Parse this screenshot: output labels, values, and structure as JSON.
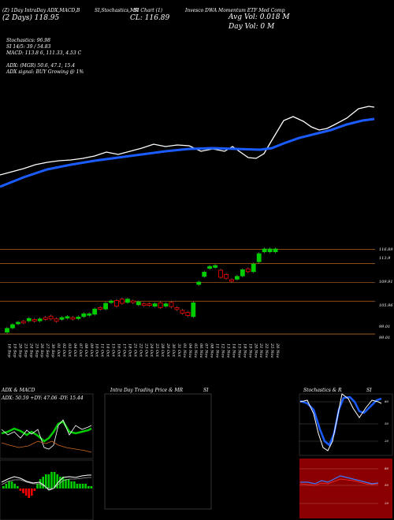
{
  "header": {
    "ticker_line": "(Z) 1Day IntraDay ADX,MACD,B",
    "date_range_line": "(2 Days)   118.95",
    "stochastic_label": "SI,Stochastics,MR",
    "si_chart_label": "SI Chart (1)",
    "close_label": "CL: 116.89",
    "company_line": "Invesco DWA Momentum ETF Med Comp",
    "avg_vol": "Avg Vol: 0.018  M",
    "day_vol": "Day Vol: 0  M"
  },
  "stats": {
    "stochastics": "Stochastics: 96.98",
    "si": "SI 14/5: 39 / 54.83",
    "macd": "MACD: 113.8         6,  111.33,  4.53 C",
    "adx": "ADX:                   (MGR) 50.6,  47.1,  15.4",
    "adx_signal": "ADX  signal:                   BUY Growing @ 1%"
  },
  "price_axis": [
    "116.89",
    "113.9",
    "109.91",
    "105.96",
    "99.01",
    "99.01"
  ],
  "date_labels": [
    "16 Sep",
    "19 Sep",
    "20 Sep",
    "23 Sep",
    "24 Sep",
    "25 Sep",
    "26 Sep",
    "27 Sep",
    "30 Sep",
    "01 Oct",
    "02 Oct",
    "03 Oct",
    "04 Oct",
    "07 Oct",
    "08 Oct",
    "09 Oct",
    "10 Oct",
    "11 Oct",
    "14 Oct",
    "15 Oct",
    "16 Oct",
    "17 Oct",
    "18 Oct",
    "21 Oct",
    "22 Oct",
    "23 Oct",
    "24 Oct",
    "25 Oct",
    "28 Oct",
    "29 Oct",
    "30 Oct",
    "31 Oct",
    "01 Nov",
    "04 Nov",
    "05 Nov",
    "06 Nov",
    "07 Nov",
    "08 Nov",
    "11 Nov",
    "12 Nov",
    "13 Nov",
    "14 Nov",
    "15 Nov",
    "18 Nov",
    "19 Nov",
    "20 Nov",
    "21 Nov",
    "22 Nov",
    "25 Nov",
    "26 Nov"
  ],
  "panels": {
    "adx_title": "ADX  & MACD",
    "adx_values": "ADX: 50.59  +DY: 47.06  -DY: 15.44",
    "intraday_title": "Intra  Day Trading Price  & MR",
    "intraday_si": "SI",
    "stoch_title": "Stochastics & R",
    "stoch_si": "SI",
    "stoch_ticks": [
      "80",
      "50",
      "20"
    ],
    "si_ticks": [
      "80",
      "50",
      "20"
    ]
  },
  "colors": {
    "up": "#00cc00",
    "down": "#ff0000",
    "ma_blue": "#1a5cff",
    "grid_orange": "#b5651d",
    "dark_red": "#8b0000"
  },
  "chart_data": {
    "type": "candlestick",
    "candles": [
      {
        "o": 99.4,
        "c": 100.2
      },
      {
        "o": 100.3,
        "c": 101.0
      },
      {
        "o": 101.3,
        "c": 101.5
      },
      {
        "o": 101.7,
        "c": 101.6
      },
      {
        "o": 101.8,
        "c": 102.3
      },
      {
        "o": 102.1,
        "c": 102.0
      },
      {
        "o": 101.8,
        "c": 102.2
      },
      {
        "o": 102.5,
        "c": 102.1
      },
      {
        "o": 102.8,
        "c": 102.2
      },
      {
        "o": 102.2,
        "c": 101.7
      },
      {
        "o": 102.1,
        "c": 102.5
      },
      {
        "o": 102.5,
        "c": 102.7
      },
      {
        "o": 102.5,
        "c": 102.2
      },
      {
        "o": 102.4,
        "c": 102.6
      },
      {
        "o": 102.7,
        "c": 103.3
      },
      {
        "o": 103.0,
        "c": 103.3
      },
      {
        "o": 103.2,
        "c": 104.3
      },
      {
        "o": 104.6,
        "c": 104.3
      },
      {
        "o": 104.3,
        "c": 105.5
      },
      {
        "o": 105.8,
        "c": 106.0
      },
      {
        "o": 106.1,
        "c": 104.9
      },
      {
        "o": 106.4,
        "c": 105.5
      },
      {
        "o": 105.7,
        "c": 106.4
      },
      {
        "o": 106.0,
        "c": 105.7
      },
      {
        "o": 105.2,
        "c": 105.8
      },
      {
        "o": 105.4,
        "c": 105.1
      },
      {
        "o": 105.4,
        "c": 105.1
      },
      {
        "o": 104.9,
        "c": 105.4
      },
      {
        "o": 105.6,
        "c": 104.6
      },
      {
        "o": 104.9,
        "c": 105.4
      },
      {
        "o": 105.7,
        "c": 104.8
      },
      {
        "o": 104.6,
        "c": 104.2
      },
      {
        "o": 104.0,
        "c": 103.4
      },
      {
        "o": 103.6,
        "c": 102.9
      },
      {
        "o": 102.7,
        "c": 105.6
      },
      {
        "o": 109.5,
        "c": 110.0
      },
      {
        "o": 111.2,
        "c": 112.1
      },
      {
        "o": 112.9,
        "c": 113.3
      },
      {
        "o": 113.1,
        "c": 113.5
      },
      {
        "o": 112.5,
        "c": 111.0
      },
      {
        "o": 111.6,
        "c": 110.8
      },
      {
        "o": 110.5,
        "c": 110.4
      },
      {
        "o": 110.6,
        "c": 111.2
      },
      {
        "o": 111.3,
        "c": 112.6
      },
      {
        "o": 112.8,
        "c": 112.2
      },
      {
        "o": 112.2,
        "c": 113.8
      },
      {
        "o": 114.3,
        "c": 116.0
      },
      {
        "o": 116.4,
        "c": 117.0
      },
      {
        "o": 116.4,
        "c": 117.0
      },
      {
        "o": 116.4,
        "c": 117.0
      }
    ],
    "ylim": [
      99.0,
      117.5
    ]
  }
}
